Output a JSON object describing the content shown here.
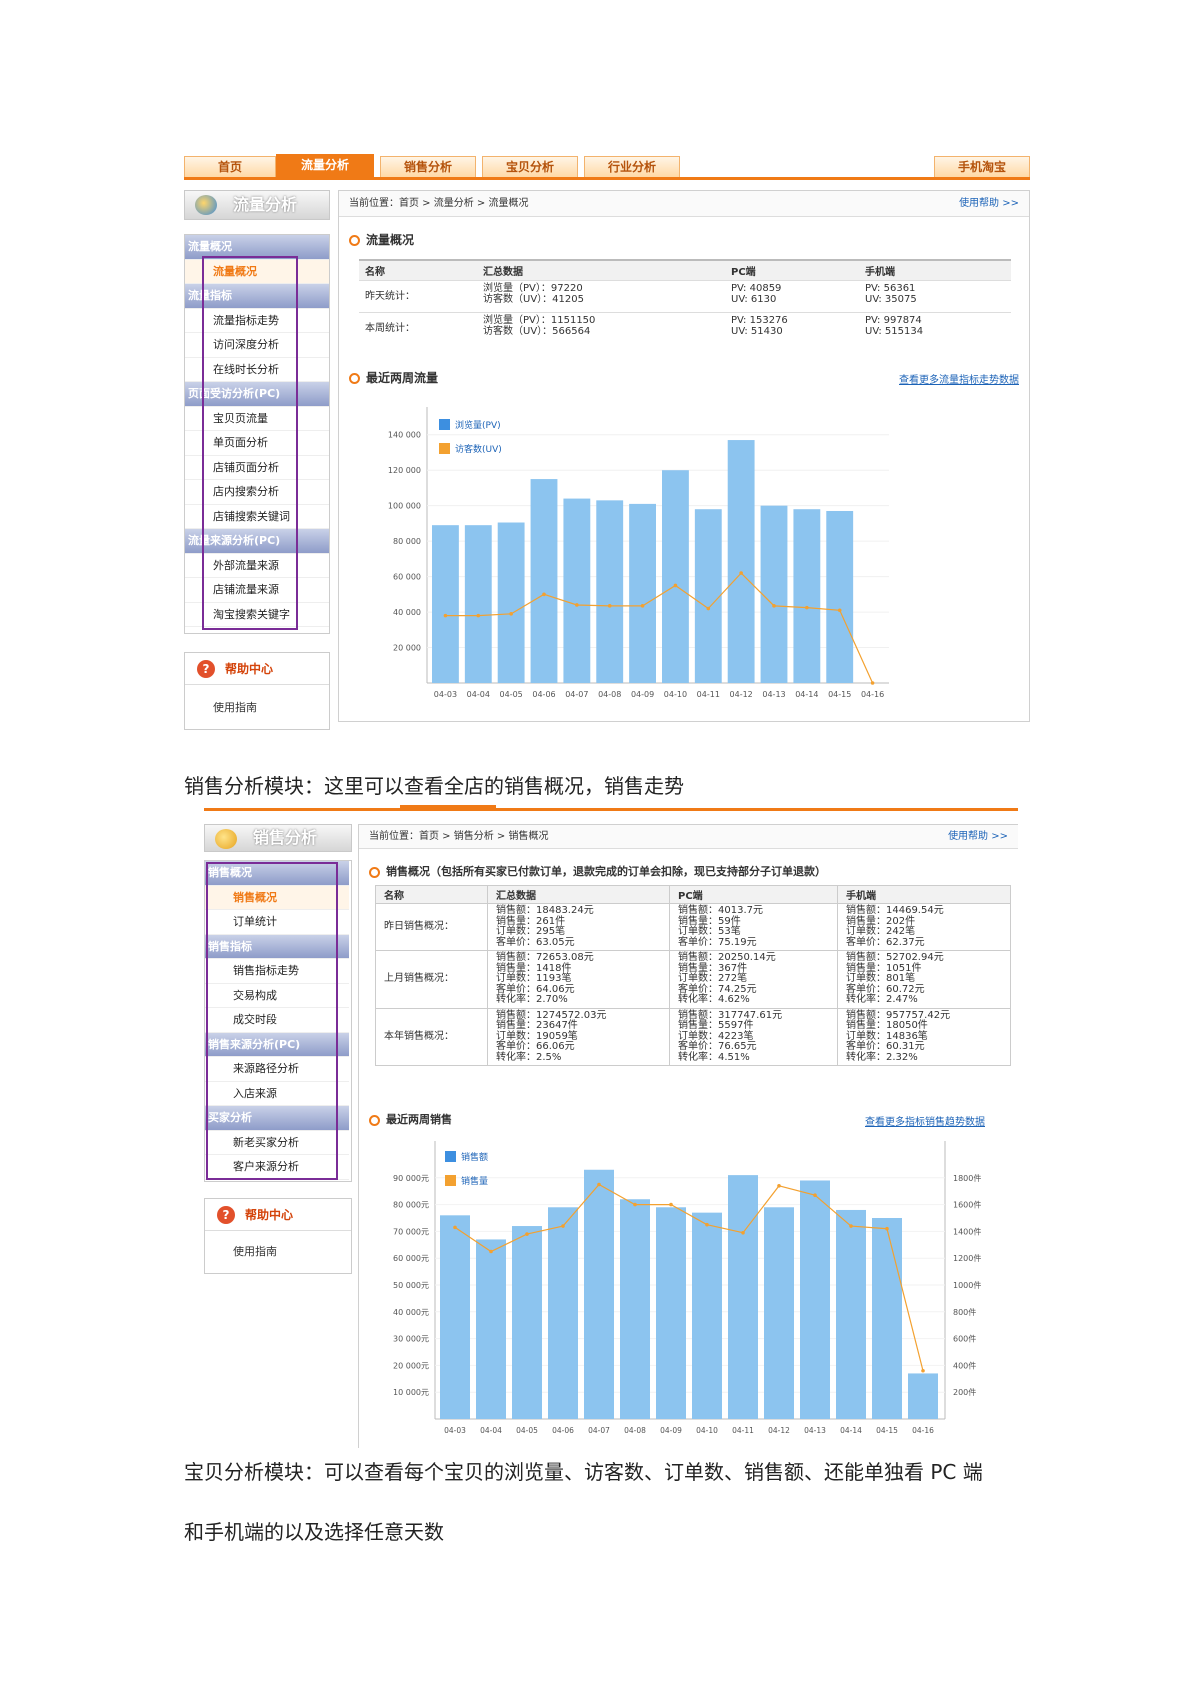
{
  "screenshot1": {
    "nav": {
      "tabs": [
        "首页",
        "流量分析",
        "销售分析",
        "宝贝分析",
        "行业分析"
      ],
      "active": 1,
      "right": "手机淘宝"
    },
    "side_title": "流量分析",
    "sidebar": [
      {
        "label": "流量概况",
        "type": "group"
      },
      {
        "label": "流量概况",
        "type": "item",
        "selected": true
      },
      {
        "label": "流量指标",
        "type": "group"
      },
      {
        "label": "流量指标走势",
        "type": "item"
      },
      {
        "label": "访问深度分析",
        "type": "item"
      },
      {
        "label": "在线时长分析",
        "type": "item"
      },
      {
        "label": "页面受访分析(PC)",
        "type": "group"
      },
      {
        "label": "宝贝页流量",
        "type": "item"
      },
      {
        "label": "单页面分析",
        "type": "item"
      },
      {
        "label": "店铺页面分析",
        "type": "item"
      },
      {
        "label": "店内搜索分析",
        "type": "item"
      },
      {
        "label": "店铺搜索关键词",
        "type": "item"
      },
      {
        "label": "流量来源分析(PC)",
        "type": "group"
      },
      {
        "label": "外部流量来源",
        "type": "item"
      },
      {
        "label": "店铺流量来源",
        "type": "item"
      },
      {
        "label": "淘宝搜索关键字",
        "type": "item"
      }
    ],
    "help": {
      "title": "帮助中心",
      "link": "使用指南"
    },
    "breadcrumb": "当前位置：首页 > 流量分析 > 流量概况",
    "breadcrumb_right": "使用帮助 >>",
    "overview": {
      "title": "流量概况",
      "headers": [
        "名称",
        "汇总数据",
        "PC端",
        "手机端"
      ],
      "rows": [
        {
          "label": "昨天统计：",
          "total": [
            "浏览量（PV）：97220",
            "访客数（UV）：41205"
          ],
          "pc": [
            "PV: 40859",
            "UV: 6130"
          ],
          "mobile": [
            "PV: 56361",
            "UV: 35075"
          ]
        },
        {
          "label": "本周统计：",
          "total": [
            "浏览量（PV）：1151150",
            "访客数（UV）：566564"
          ],
          "pc": [
            "PV: 153276",
            "UV: 51430"
          ],
          "mobile": [
            "PV: 997874",
            "UV: 515134"
          ]
        }
      ]
    },
    "chart_title": "最近两周流量",
    "chart_link": "查看更多流量指标走势数据"
  },
  "chart1": {
    "type": "bar",
    "categories": [
      "04-03",
      "04-04",
      "04-05",
      "04-06",
      "04-07",
      "04-08",
      "04-09",
      "04-10",
      "04-11",
      "04-12",
      "04-13",
      "04-14",
      "04-15",
      "04-16"
    ],
    "series": [
      {
        "name": "浏览量(PV)",
        "type": "bar",
        "values": [
          89000,
          89000,
          90500,
          115000,
          104000,
          103000,
          101000,
          120000,
          98000,
          137000,
          100000,
          98000,
          97000,
          0
        ]
      },
      {
        "name": "访客数(UV)",
        "type": "line",
        "values": [
          38000,
          38000,
          39000,
          50000,
          44000,
          43500,
          43500,
          55000,
          42000,
          62000,
          43500,
          42500,
          41000,
          0
        ]
      }
    ],
    "yticks": [
      "20 000",
      "40 000",
      "60 000",
      "80 000",
      "100 000",
      "120 000",
      "140 000"
    ],
    "ylim": [
      0,
      150000
    ],
    "bar_color": "#8cc4ef",
    "line_color": "#f3a130"
  },
  "para1": "销售分析模块：这里可以查看全店的销售概况，销售走势",
  "screenshot2": {
    "side_title": "销售分析",
    "sidebar": [
      {
        "label": "销售概况",
        "type": "group"
      },
      {
        "label": "销售概况",
        "type": "item",
        "selected": true
      },
      {
        "label": "订单统计",
        "type": "item"
      },
      {
        "label": "销售指标",
        "type": "group"
      },
      {
        "label": "销售指标走势",
        "type": "item"
      },
      {
        "label": "交易构成",
        "type": "item"
      },
      {
        "label": "成交时段",
        "type": "item"
      },
      {
        "label": "销售来源分析(PC)",
        "type": "group"
      },
      {
        "label": "来源路径分析",
        "type": "item"
      },
      {
        "label": "入店来源",
        "type": "item"
      },
      {
        "label": "买家分析",
        "type": "group"
      },
      {
        "label": "新老买家分析",
        "type": "item"
      },
      {
        "label": "客户来源分析",
        "type": "item"
      }
    ],
    "help": {
      "title": "帮助中心",
      "link": "使用指南"
    },
    "breadcrumb": "当前位置：首页 > 销售分析 > 销售概况",
    "breadcrumb_right": "使用帮助 >>",
    "overview": {
      "title": "销售概况（包括所有买家已付款订单，退款完成的订单会扣除，现已支持部分子订单退款）",
      "headers": [
        "名称",
        "汇总数据",
        "PC端",
        "手机端"
      ],
      "rows": [
        {
          "label": "昨日销售概况：",
          "total": [
            "销售额：18483.24元",
            "销售量：261件",
            "订单数：295笔",
            "客单价：63.05元"
          ],
          "pc": [
            "销售额：4013.7元",
            "销售量：59件",
            "订单数：53笔",
            "客单价：75.19元"
          ],
          "mobile": [
            "销售额：14469.54元",
            "销售量：202件",
            "订单数：242笔",
            "客单价：62.37元"
          ]
        },
        {
          "label": "上月销售概况：",
          "total": [
            "销售额：72653.08元",
            "销售量：1418件",
            "订单数：1193笔",
            "客单价：64.06元",
            "转化率：2.70%"
          ],
          "pc": [
            "销售额：20250.14元",
            "销售量：367件",
            "订单数：272笔",
            "客单价：74.25元",
            "转化率：4.62%"
          ],
          "mobile": [
            "销售额：52702.94元",
            "销售量：1051件",
            "订单数：801笔",
            "客单价：60.72元",
            "转化率：2.47%"
          ]
        },
        {
          "label": "本年销售概况：",
          "total": [
            "销售额：1274572.03元",
            "销售量：23647件",
            "订单数：19059笔",
            "客单价：66.06元",
            "转化率：2.5%"
          ],
          "pc": [
            "销售额：317747.61元",
            "销售量：5597件",
            "订单数：4223笔",
            "客单价：76.65元",
            "转化率：4.51%"
          ],
          "mobile": [
            "销售额：957757.42元",
            "销售量：18050件",
            "订单数：14836笔",
            "客单价：60.31元",
            "转化率：2.32%"
          ]
        }
      ]
    },
    "chart_title": "最近两周销售",
    "chart_link": "查看更多指标销售趋势数据"
  },
  "chart2": {
    "type": "bar",
    "categories": [
      "04-03",
      "04-04",
      "04-05",
      "04-06",
      "04-07",
      "04-08",
      "04-09",
      "04-10",
      "04-11",
      "04-12",
      "04-13",
      "04-14",
      "04-15",
      "04-16"
    ],
    "series": [
      {
        "name": "销售额",
        "type": "bar",
        "values": [
          76000,
          67000,
          72000,
          79000,
          93000,
          82000,
          79000,
          77000,
          91000,
          79000,
          89000,
          78000,
          75000,
          17000
        ]
      },
      {
        "name": "销售量",
        "type": "line",
        "values": [
          1430,
          1250,
          1380,
          1440,
          1750,
          1600,
          1600,
          1450,
          1390,
          1740,
          1670,
          1440,
          1420,
          360
        ]
      }
    ],
    "yticks_left": [
      "10 000元",
      "20 000元",
      "30 000元",
      "40 000元",
      "50 000元",
      "60 000元",
      "70 000元",
      "80 000元",
      "90 000元"
    ],
    "yticks_right": [
      "200件",
      "400件",
      "600件",
      "800件",
      "1000件",
      "1200件",
      "1400件",
      "1600件",
      "1800件"
    ],
    "ylim_left": [
      0,
      100000
    ],
    "ylim_right": [
      0,
      2000
    ],
    "bar_color": "#8cc4ef",
    "line_color": "#f3a130"
  },
  "para2": "宝贝分析模块：可以查看每个宝贝的浏览量、访客数、订单数、销售额、还能单独看 PC 端",
  "para3": "和手机端的以及选择任意天数"
}
